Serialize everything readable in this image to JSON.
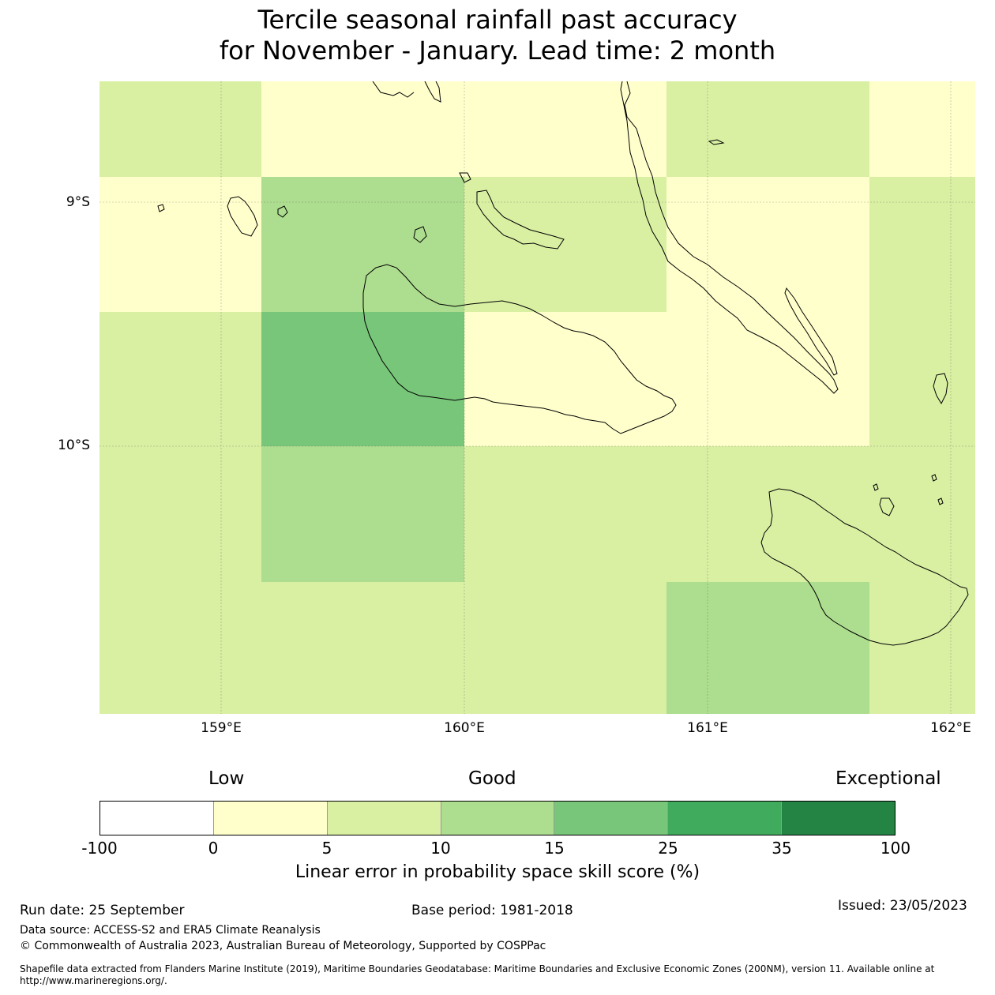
{
  "title": {
    "line1": "Tercile seasonal rainfall past accuracy",
    "line2": "for November - January. Lead time: 2 month"
  },
  "map": {
    "lat_labels": [
      "9°S",
      "10°S"
    ],
    "lon_labels": [
      "159°E",
      "160°E",
      "161°E",
      "162°E"
    ],
    "grid_cells": [
      {
        "row": 0,
        "col": 0,
        "category": "5-10"
      },
      {
        "row": 0,
        "col": 1,
        "category": "0-5"
      },
      {
        "row": 0,
        "col": 2,
        "category": "0-5"
      },
      {
        "row": 0,
        "col": 3,
        "category": "5-10"
      },
      {
        "row": 0,
        "col": 4,
        "category": "0-5"
      },
      {
        "row": 1,
        "col": 0,
        "category": "0-5"
      },
      {
        "row": 1,
        "col": 1,
        "category": "10-15"
      },
      {
        "row": 1,
        "col": 2,
        "category": "5-10"
      },
      {
        "row": 1,
        "col": 3,
        "category": "0-5"
      },
      {
        "row": 1,
        "col": 4,
        "category": "5-10"
      },
      {
        "row": 2,
        "col": 0,
        "category": "5-10"
      },
      {
        "row": 2,
        "col": 1,
        "category": "15-25"
      },
      {
        "row": 2,
        "col": 2,
        "category": "0-5"
      },
      {
        "row": 2,
        "col": 3,
        "category": "0-5"
      },
      {
        "row": 2,
        "col": 4,
        "category": "5-10"
      },
      {
        "row": 3,
        "col": 0,
        "category": "5-10"
      },
      {
        "row": 3,
        "col": 1,
        "category": "10-15"
      },
      {
        "row": 3,
        "col": 2,
        "category": "5-10"
      },
      {
        "row": 3,
        "col": 3,
        "category": "5-10"
      },
      {
        "row": 3,
        "col": 4,
        "category": "5-10"
      },
      {
        "row": 4,
        "col": 0,
        "category": "5-10"
      },
      {
        "row": 4,
        "col": 1,
        "category": "5-10"
      },
      {
        "row": 4,
        "col": 2,
        "category": "5-10"
      },
      {
        "row": 4,
        "col": 3,
        "category": "10-15"
      },
      {
        "row": 4,
        "col": 4,
        "category": "5-10"
      }
    ]
  },
  "colorbar": {
    "words": [
      "Low",
      "Good",
      "Exceptional"
    ],
    "ticks": [
      "-100",
      "0",
      "5",
      "10",
      "15",
      "25",
      "35",
      "100"
    ],
    "colors": [
      "#ffffff",
      "#ffffcc",
      "#d9f0a3",
      "#addd8e",
      "#78c679",
      "#41ab5d",
      "#238443"
    ],
    "title": "Linear error in probability space skill score (%)"
  },
  "footer": {
    "run_date": "Run date: 25 September",
    "base_period": "Base period: 1981-2018",
    "issued": "Issued: 23/05/2023",
    "data_source": "Data source: ACCESS-S2 and ERA5 Climate Reanalysis",
    "copyright": "© Commonwealth of Australia 2023, Australian Bureau of Meteorology, Supported by COSPPac",
    "shapefile": "Shapefile data extracted from Flanders Marine Institute (2019), Maritime Boundaries Geodatabase: Maritime Boundaries and Exclusive Economic Zones (200NM), version 11. Available online at http://www.marineregions.org/."
  }
}
